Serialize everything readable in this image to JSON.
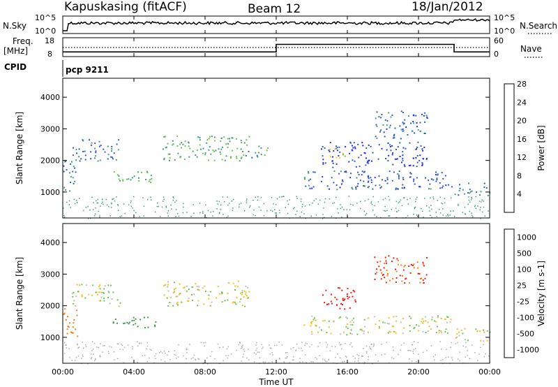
{
  "header": {
    "station": "Kapuskasing (fitACF)",
    "beam": "Beam 12",
    "date": "18/Jan/2012"
  },
  "top_panels": {
    "nsky_label": "N.Sky",
    "nsky_ticks": [
      "10^5",
      "10^0"
    ],
    "nsearch_label": "N.Search",
    "nsearch_ticks": [
      "10^5",
      "10^0"
    ],
    "freq_label": "Freq.",
    "freq_unit": "[MHz]",
    "freq_ticks": [
      "18",
      "8"
    ],
    "nave_label": "Nave",
    "nave_ticks": [
      "60",
      "0"
    ],
    "cpid_label": "CPID",
    "cpid_value": "pcp 9211"
  },
  "chart_data": [
    {
      "type": "heatmap",
      "name": "power",
      "ylabel": "Slant Range [km]",
      "ylim": [
        180,
        4600
      ],
      "yticks": [
        1000,
        2000,
        3000,
        4000
      ],
      "colorbar_label": "Power [dB]",
      "colorbar_ticks": [
        "4",
        "8",
        "12",
        "16",
        "20",
        "24",
        "28"
      ],
      "colorbar_colors": [
        "#1e2bff",
        "#2b5cb8",
        "#3f9c7c",
        "#6cc24a",
        "#f2c01e",
        "#f27b12",
        "#e81a0c"
      ],
      "echo_regions": [
        {
          "t0": 0.0,
          "t1": 0.8,
          "r0": 1000,
          "r1": 2000,
          "value": 10
        },
        {
          "t0": 0.5,
          "t1": 3.2,
          "r0": 2000,
          "r1": 2700,
          "value": 9
        },
        {
          "t0": 2.8,
          "t1": 5.2,
          "r0": 1300,
          "r1": 1700,
          "value": 14
        },
        {
          "t0": 5.6,
          "t1": 10.5,
          "r0": 2000,
          "r1": 2800,
          "value": 14
        },
        {
          "t0": 10.0,
          "t1": 11.5,
          "r0": 2100,
          "r1": 2500,
          "value": 12
        },
        {
          "t0": 13.5,
          "t1": 21.8,
          "r0": 1100,
          "r1": 1700,
          "value": 8
        },
        {
          "t0": 14.5,
          "t1": 20.5,
          "r0": 1800,
          "r1": 2600,
          "value": 6
        },
        {
          "t0": 15.0,
          "t1": 16.0,
          "r0": 2100,
          "r1": 2400,
          "value": 19
        },
        {
          "t0": 17.5,
          "t1": 20.5,
          "r0": 2700,
          "r1": 3600,
          "value": 8
        },
        {
          "t0": 21.8,
          "t1": 24.0,
          "r0": 900,
          "r1": 1300,
          "value": 10
        }
      ]
    },
    {
      "type": "heatmap",
      "name": "velocity",
      "ylabel": "Slant Range [km]",
      "ylim": [
        180,
        4600
      ],
      "yticks": [
        1000,
        2000,
        3000,
        4000
      ],
      "colorbar_label": "Velocity [m s-1]",
      "colorbar_ticks": [
        "1000",
        "500",
        "100",
        "25",
        "-25",
        "-100",
        "-500",
        "-1000"
      ],
      "colorbar_colors": [
        "#1e2bff",
        "#2b5cb8",
        "#3f9c4c",
        "#6cc24a",
        "#bdbdbd",
        "#f2c01e",
        "#f27b12",
        "#e81a0c"
      ],
      "echo_regions": [
        {
          "t0": 0.0,
          "t1": 0.8,
          "r0": 1000,
          "r1": 2000,
          "value": -300
        },
        {
          "t0": 0.5,
          "t1": 3.2,
          "r0": 2000,
          "r1": 2700,
          "value": 0
        },
        {
          "t0": 2.8,
          "t1": 5.2,
          "r0": 1300,
          "r1": 1700,
          "value": 200
        },
        {
          "t0": 5.6,
          "t1": 10.5,
          "r0": 2000,
          "r1": 2800,
          "value": 0
        },
        {
          "t0": 13.5,
          "t1": 21.8,
          "r0": 1100,
          "r1": 1700,
          "value": 0
        },
        {
          "t0": 14.5,
          "t1": 16.5,
          "r0": 1900,
          "r1": 2600,
          "value": -700
        },
        {
          "t0": 17.5,
          "t1": 20.5,
          "r0": 2700,
          "r1": 3600,
          "value": -500
        },
        {
          "t0": 21.8,
          "t1": 24.0,
          "r0": 900,
          "r1": 1300,
          "value": 0
        }
      ]
    }
  ],
  "xaxis": {
    "label": "Time UT",
    "ticks": [
      "00:00",
      "04:00",
      "08:00",
      "12:00",
      "16:00",
      "20:00",
      "00:00"
    ],
    "range_hours": [
      0,
      24
    ]
  },
  "freq_series": [
    {
      "t0": 0,
      "t1": 12,
      "value": 10.5
    },
    {
      "t0": 12,
      "t1": 22,
      "value": 14.5
    },
    {
      "t0": 22,
      "t1": 24,
      "value": 10.5
    }
  ]
}
